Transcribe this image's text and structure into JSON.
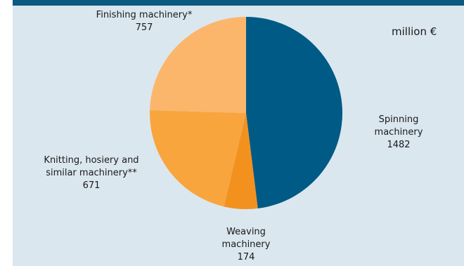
{
  "colors": {
    "background": "#dbe7ef",
    "top_bar": "#0b5a80",
    "spinning": "#005a86",
    "weaving": "#f3911f",
    "knitting": "#f8a53e",
    "finishing": "#fbb66c"
  },
  "chart_data": {
    "type": "pie",
    "unit": "million €",
    "start_angle_deg": 0,
    "direction": "clockwise",
    "slices": [
      {
        "label_lines": [
          "Spinning",
          "machinery"
        ],
        "value": 1482,
        "value_text": "1482",
        "color": "#005a86"
      },
      {
        "label_lines": [
          "Weaving",
          "machinery"
        ],
        "value": 174,
        "value_text": "174",
        "color": "#f3911f"
      },
      {
        "label_lines": [
          "Knitting, hosiery and",
          "similar machinery**"
        ],
        "value": 671,
        "value_text": "671",
        "color": "#f8a53e"
      },
      {
        "label_lines": [
          "Finishing machinery*"
        ],
        "value": 757,
        "value_text": "757",
        "color": "#fbb66c"
      }
    ]
  }
}
